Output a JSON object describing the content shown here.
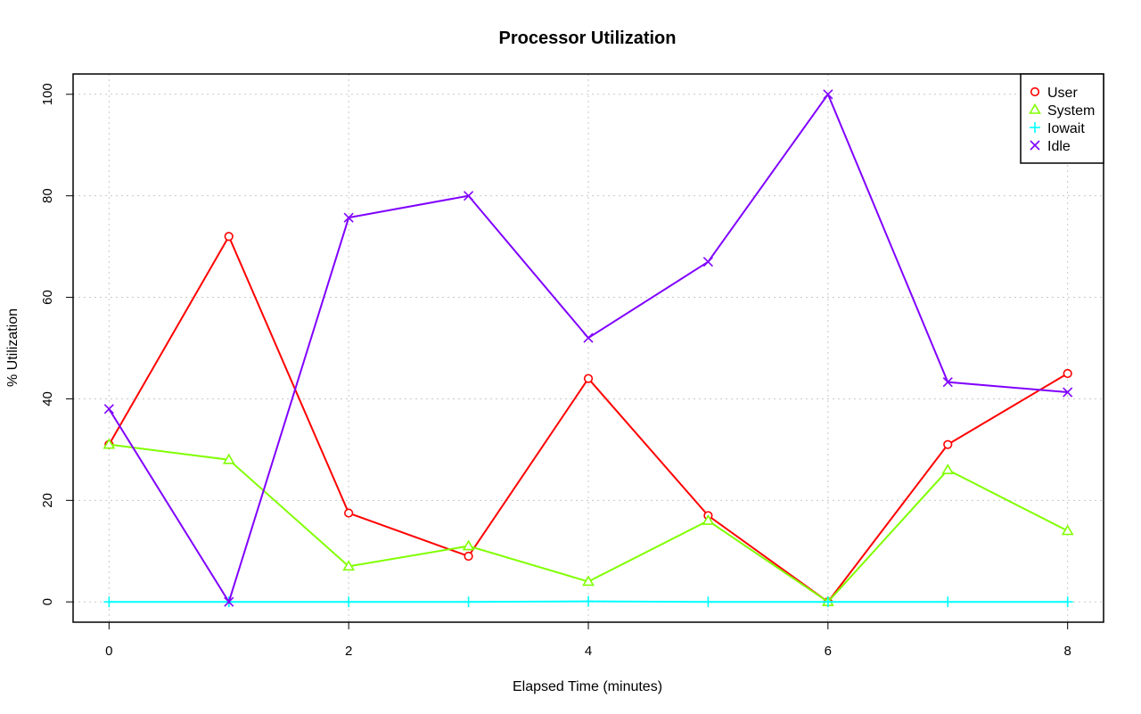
{
  "chart_data": {
    "type": "line",
    "title": "Processor Utilization",
    "xlabel": "Elapsed Time (minutes)",
    "ylabel": "% Utilization",
    "x": [
      0,
      1,
      2,
      3,
      4,
      5,
      6,
      7,
      8
    ],
    "xlim": [
      -0.3,
      8.3
    ],
    "ylim": [
      -4,
      104
    ],
    "xticks": [
      0,
      2,
      4,
      6,
      8
    ],
    "yticks": [
      0,
      20,
      40,
      60,
      80,
      100
    ],
    "grid": true,
    "legend_position": "top-right",
    "series": [
      {
        "name": "User",
        "color": "#ff0000",
        "marker": "circle",
        "values": [
          31,
          72,
          17.5,
          9,
          44,
          17,
          0,
          31,
          45
        ]
      },
      {
        "name": "System",
        "color": "#80ff00",
        "marker": "triangle",
        "values": [
          31,
          28,
          7,
          11,
          4,
          16,
          0,
          26,
          14
        ]
      },
      {
        "name": "Iowait",
        "color": "#00ffff",
        "marker": "plus",
        "values": [
          0,
          0,
          0,
          0,
          0.1,
          0,
          0,
          0,
          0
        ]
      },
      {
        "name": "Idle",
        "color": "#8000ff",
        "marker": "cross",
        "values": [
          38,
          0,
          75.7,
          80,
          52,
          67,
          100,
          43.3,
          41.3
        ]
      }
    ]
  }
}
